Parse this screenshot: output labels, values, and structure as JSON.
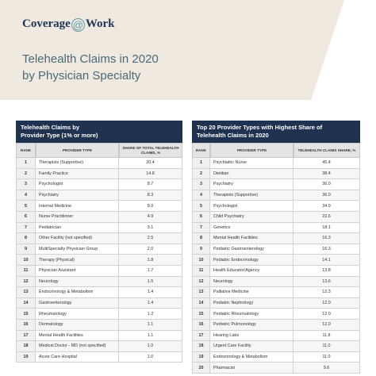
{
  "header": {
    "logo": {
      "left": "Coverage",
      "at": "@",
      "right": "Work"
    },
    "title_lines": [
      "Telehealth Claims in 2020",
      "by Physician Specialty"
    ]
  },
  "tables": [
    {
      "title_lines": [
        "Telehealth Claims by",
        "Provider Type (1% or more)"
      ],
      "columns": [
        "RANK",
        "PROVIDER TYPE",
        "SHARE OF TOTAL TELEHEALTH CLAIMS, %"
      ],
      "rows": [
        [
          "1",
          "Therapists (Supportive)",
          "20.4"
        ],
        [
          "2",
          "Family Practice",
          "14.8"
        ],
        [
          "3",
          "Psychologist",
          "8.7"
        ],
        [
          "4",
          "Psychiatry",
          "8.3"
        ],
        [
          "5",
          "Internal Medicine",
          "8.0"
        ],
        [
          "6",
          "Nurse Practitioner",
          "4.9"
        ],
        [
          "7",
          "Pediatrician",
          "3.1"
        ],
        [
          "8",
          "Other Facility (not specified)",
          "2.5"
        ],
        [
          "9",
          "MultiSpecialty Physician Group",
          "2.0"
        ],
        [
          "10",
          "Therapy (Physical)",
          "1.8"
        ],
        [
          "11",
          "Physician Assistant",
          "1.7"
        ],
        [
          "12",
          "Neurology",
          "1.5"
        ],
        [
          "13",
          "Endocrinology & Metabolism",
          "1.4"
        ],
        [
          "14",
          "Gastroenterology",
          "1.4"
        ],
        [
          "15",
          "Rheumatology",
          "1.2"
        ],
        [
          "16",
          "Dermatology",
          "1.1"
        ],
        [
          "17",
          "Mental Health Facilities",
          "1.1"
        ],
        [
          "18",
          "Medical Doctor - MD (not specified)",
          "1.0"
        ],
        [
          "19",
          "Acute Care Hospital",
          "1.0"
        ]
      ]
    },
    {
      "title_lines": [
        "Top 20 Provider Types with Highest Share of",
        "Telehealth Claims in 2020"
      ],
      "columns": [
        "RANK",
        "PROVIDER TYPE",
        "TELEHEALTH CLAIMS SHARE, %"
      ],
      "rows": [
        [
          "1",
          "Psychiatric Nurse",
          "45.4"
        ],
        [
          "2",
          "Dietitian",
          "38.4"
        ],
        [
          "3",
          "Psychiatry",
          "36.0"
        ],
        [
          "4",
          "Therapists (Supportive)",
          "36.0"
        ],
        [
          "5",
          "Psychologist",
          "34.9"
        ],
        [
          "6",
          "Child Psychiatry",
          "22.6"
        ],
        [
          "7",
          "Genetics",
          "18.1"
        ],
        [
          "8",
          "Mental Health Facilities",
          "16.3"
        ],
        [
          "9",
          "Pediatric Gastroenterology",
          "16.3"
        ],
        [
          "10",
          "Pediatric Endocrinology",
          "14.1"
        ],
        [
          "11",
          "Health Educator/Agency",
          "13.8"
        ],
        [
          "12",
          "Neurology",
          "13.6"
        ],
        [
          "13",
          "Palliative Medicine",
          "12.3"
        ],
        [
          "14",
          "Pediatric Nephrology",
          "12.0"
        ],
        [
          "15",
          "Pediatric Rheumatology",
          "12.0"
        ],
        [
          "16",
          "Pediatric Pulmonology",
          "12.0"
        ],
        [
          "17",
          "Hearing Labs",
          "11.8"
        ],
        [
          "18",
          "Urgent Care Facility",
          "11.0"
        ],
        [
          "19",
          "Endocrinology & Metabolism",
          "11.0"
        ],
        [
          "20",
          "Pharmacist",
          "9.6"
        ]
      ]
    }
  ]
}
